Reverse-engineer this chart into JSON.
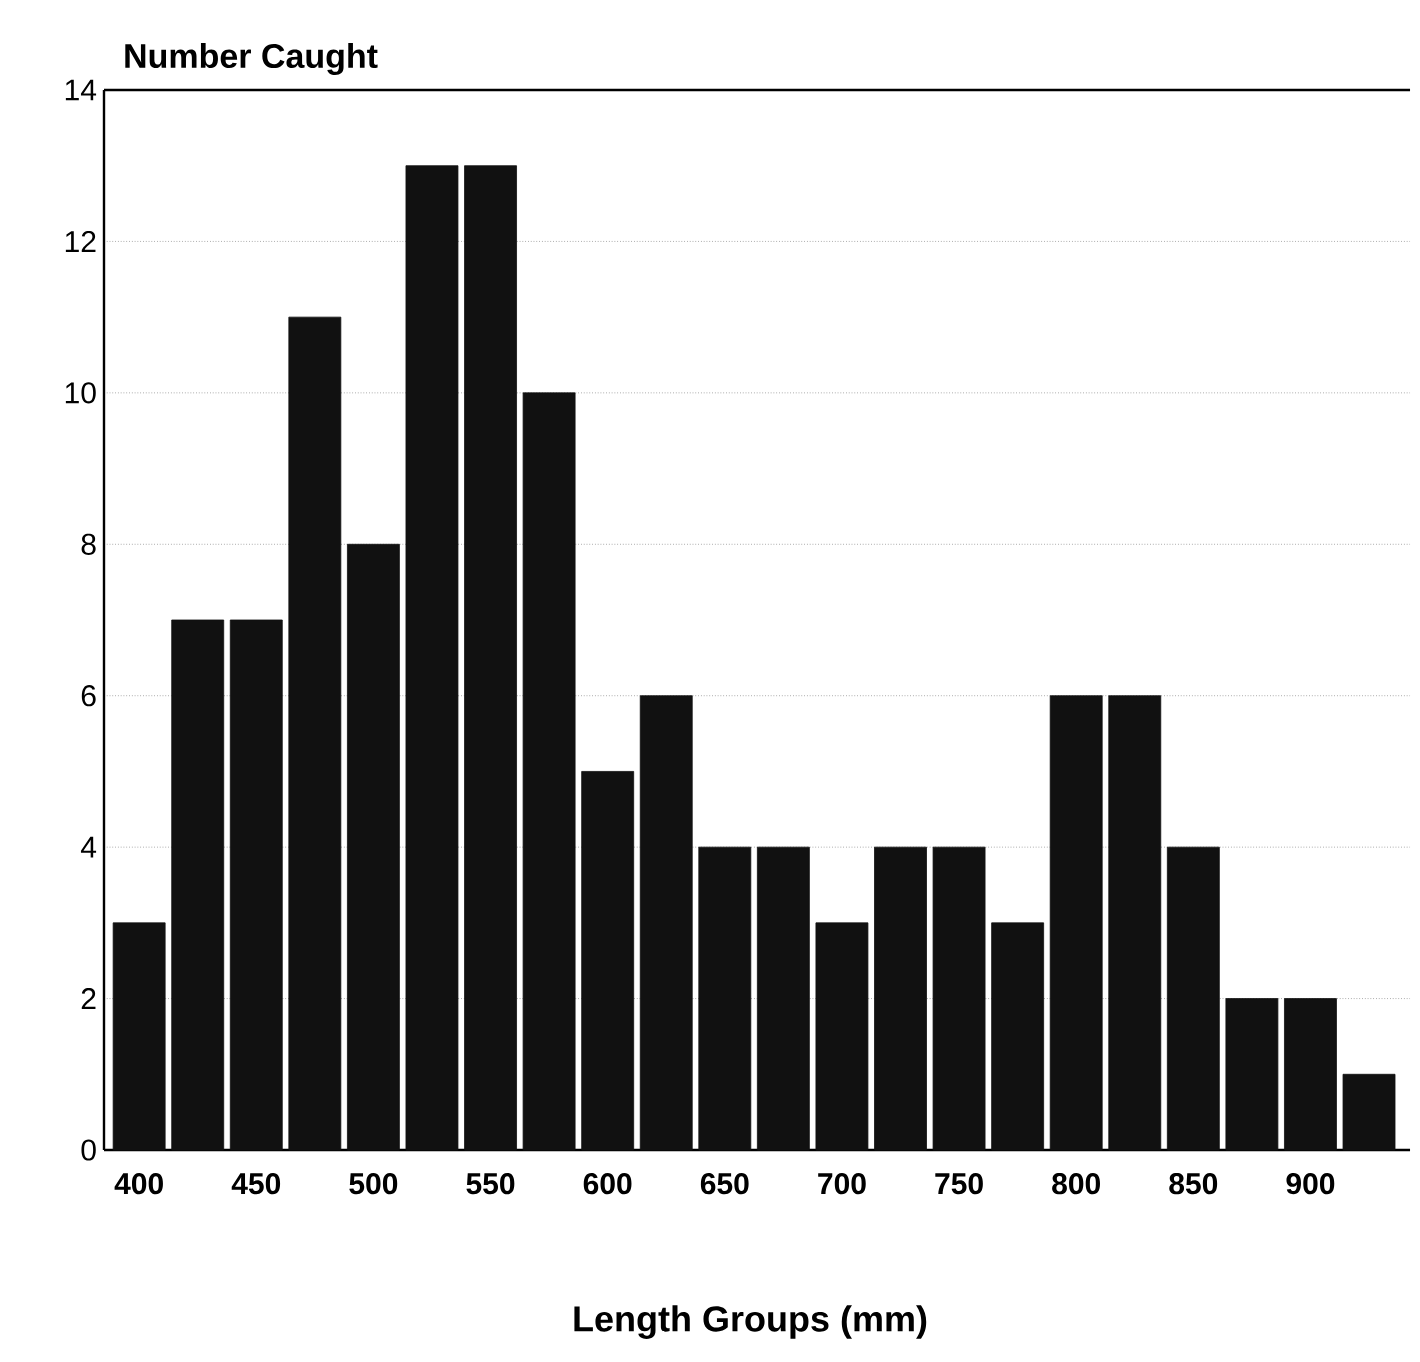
{
  "chart_data": {
    "type": "bar",
    "ylabel": "Number Caught",
    "xlabel": "Length Groups (mm)",
    "categories": [
      "400",
      null,
      "450",
      null,
      "500",
      null,
      "550",
      null,
      "600",
      null,
      "650",
      null,
      "700",
      null,
      "750",
      null,
      "800",
      null,
      "850",
      null,
      "900",
      null
    ],
    "values": [
      3,
      7,
      7,
      11,
      8,
      13,
      13,
      10,
      5,
      6,
      4,
      4,
      3,
      4,
      4,
      3,
      6,
      6,
      4,
      2,
      2,
      1
    ],
    "color": "#111111",
    "ylim": [
      0,
      14
    ],
    "yticks": [
      0,
      2,
      4,
      6,
      8,
      10,
      12,
      14
    ],
    "grid": "y"
  }
}
